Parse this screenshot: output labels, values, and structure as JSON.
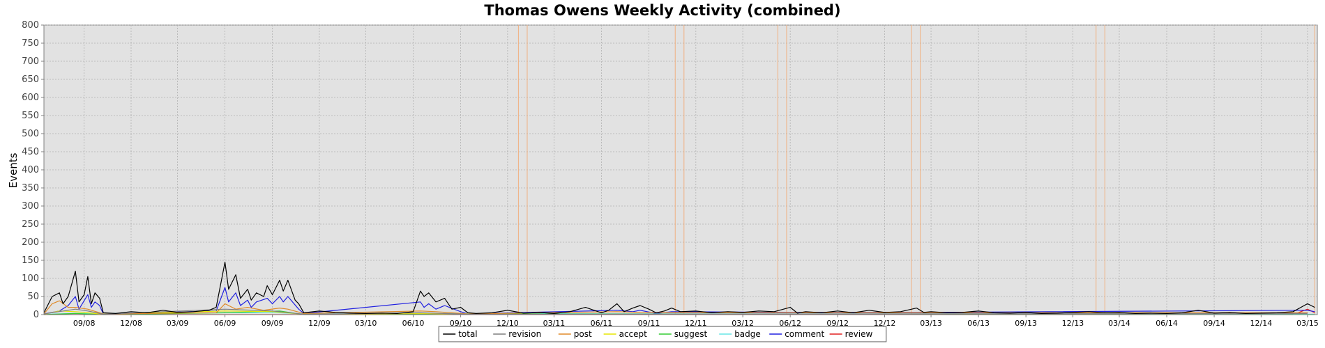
{
  "chart_data": {
    "type": "line",
    "title": "Thomas Owens Weekly Activity (combined)",
    "xlabel": "",
    "ylabel": "Events",
    "ylim": [
      0,
      800
    ],
    "yticks": [
      0,
      50,
      100,
      150,
      200,
      250,
      300,
      350,
      400,
      450,
      500,
      550,
      600,
      650,
      700,
      750,
      800
    ],
    "x_start": "2008-06-15",
    "x_end": "2015-03-20",
    "grid": true,
    "legend": "bottom-center",
    "x_tick_labels": [
      "09/08",
      "12/08",
      "03/09",
      "06/09",
      "09/09",
      "12/09",
      "03/10",
      "06/10",
      "09/10",
      "12/10",
      "03/11",
      "06/11",
      "09/11",
      "12/11",
      "03/12",
      "06/12",
      "09/12",
      "12/12",
      "03/13",
      "06/13",
      "09/13",
      "12/13",
      "03/14",
      "06/14",
      "09/14",
      "12/14",
      "03/15"
    ],
    "x_tick_dates": [
      "2008-09-01",
      "2008-12-01",
      "2009-03-01",
      "2009-06-01",
      "2009-09-01",
      "2009-12-01",
      "2010-03-01",
      "2010-06-01",
      "2010-09-01",
      "2010-12-01",
      "2011-03-01",
      "2011-06-01",
      "2011-09-01",
      "2011-12-01",
      "2012-03-01",
      "2012-06-01",
      "2012-09-01",
      "2012-12-01",
      "2013-03-01",
      "2013-06-01",
      "2013-09-01",
      "2013-12-01",
      "2014-03-01",
      "2014-06-01",
      "2014-09-01",
      "2014-12-01",
      "2015-03-01"
    ],
    "markers": [
      {
        "date": "2008-06-15",
        "color": "#3cb43c"
      },
      {
        "date": "2010-12-22",
        "color": "#f0b080"
      },
      {
        "date": "2011-01-08",
        "color": "#f0b080"
      },
      {
        "date": "2011-10-22",
        "color": "#f0b080"
      },
      {
        "date": "2011-11-08",
        "color": "#f0b080"
      },
      {
        "date": "2012-05-08",
        "color": "#f0b080"
      },
      {
        "date": "2012-05-25",
        "color": "#f0b080"
      },
      {
        "date": "2013-01-22",
        "color": "#f0b080"
      },
      {
        "date": "2013-02-08",
        "color": "#f0b080"
      },
      {
        "date": "2014-01-15",
        "color": "#f0b080"
      },
      {
        "date": "2014-02-01",
        "color": "#f0b080"
      },
      {
        "date": "2015-03-15",
        "color": "#f0b080"
      }
    ],
    "series": [
      {
        "name": "total",
        "color": "#000000",
        "points": [
          [
            "2008-06-15",
            5
          ],
          [
            "2008-07-01",
            50
          ],
          [
            "2008-07-15",
            60
          ],
          [
            "2008-07-22",
            30
          ],
          [
            "2008-08-01",
            50
          ],
          [
            "2008-08-15",
            120
          ],
          [
            "2008-08-22",
            35
          ],
          [
            "2008-09-01",
            55
          ],
          [
            "2008-09-08",
            105
          ],
          [
            "2008-09-15",
            30
          ],
          [
            "2008-09-22",
            60
          ],
          [
            "2008-10-01",
            45
          ],
          [
            "2008-10-08",
            5
          ],
          [
            "2008-11-01",
            3
          ],
          [
            "2008-12-01",
            8
          ],
          [
            "2009-01-01",
            5
          ],
          [
            "2009-02-01",
            12
          ],
          [
            "2009-03-01",
            6
          ],
          [
            "2009-04-01",
            8
          ],
          [
            "2009-05-01",
            12
          ],
          [
            "2009-05-15",
            20
          ],
          [
            "2009-06-01",
            145
          ],
          [
            "2009-06-08",
            70
          ],
          [
            "2009-06-22",
            110
          ],
          [
            "2009-07-01",
            45
          ],
          [
            "2009-07-15",
            70
          ],
          [
            "2009-07-22",
            40
          ],
          [
            "2009-08-01",
            60
          ],
          [
            "2009-08-15",
            50
          ],
          [
            "2009-08-22",
            80
          ],
          [
            "2009-09-01",
            55
          ],
          [
            "2009-09-15",
            95
          ],
          [
            "2009-09-22",
            65
          ],
          [
            "2009-10-01",
            95
          ],
          [
            "2009-10-15",
            40
          ],
          [
            "2009-10-22",
            30
          ],
          [
            "2009-11-01",
            5
          ],
          [
            "2009-12-01",
            10
          ],
          [
            "2010-01-01",
            6
          ],
          [
            "2010-02-01",
            4
          ],
          [
            "2010-03-01",
            3
          ],
          [
            "2010-04-01",
            4
          ],
          [
            "2010-05-01",
            3
          ],
          [
            "2010-06-01",
            8
          ],
          [
            "2010-06-15",
            65
          ],
          [
            "2010-06-22",
            50
          ],
          [
            "2010-07-01",
            60
          ],
          [
            "2010-07-15",
            35
          ],
          [
            "2010-08-01",
            45
          ],
          [
            "2010-08-15",
            15
          ],
          [
            "2010-09-01",
            20
          ],
          [
            "2010-09-15",
            5
          ],
          [
            "2010-10-01",
            3
          ],
          [
            "2010-11-01",
            5
          ],
          [
            "2010-12-01",
            12
          ],
          [
            "2011-01-01",
            4
          ],
          [
            "2011-02-01",
            6
          ],
          [
            "2011-03-01",
            3
          ],
          [
            "2011-04-01",
            8
          ],
          [
            "2011-05-01",
            20
          ],
          [
            "2011-06-01",
            5
          ],
          [
            "2011-06-15",
            12
          ],
          [
            "2011-07-01",
            30
          ],
          [
            "2011-07-15",
            8
          ],
          [
            "2011-08-01",
            18
          ],
          [
            "2011-08-15",
            25
          ],
          [
            "2011-09-01",
            15
          ],
          [
            "2011-09-15",
            5
          ],
          [
            "2011-10-01",
            10
          ],
          [
            "2011-10-15",
            18
          ],
          [
            "2011-11-01",
            8
          ],
          [
            "2011-12-01",
            10
          ],
          [
            "2012-01-01",
            5
          ],
          [
            "2012-02-01",
            8
          ],
          [
            "2012-03-01",
            6
          ],
          [
            "2012-04-01",
            10
          ],
          [
            "2012-05-01",
            8
          ],
          [
            "2012-06-01",
            20
          ],
          [
            "2012-06-15",
            4
          ],
          [
            "2012-07-01",
            8
          ],
          [
            "2012-08-01",
            5
          ],
          [
            "2012-09-01",
            10
          ],
          [
            "2012-10-01",
            5
          ],
          [
            "2012-11-01",
            12
          ],
          [
            "2012-12-01",
            6
          ],
          [
            "2013-01-01",
            8
          ],
          [
            "2013-02-01",
            18
          ],
          [
            "2013-02-15",
            6
          ],
          [
            "2013-03-01",
            8
          ],
          [
            "2013-04-01",
            5
          ],
          [
            "2013-05-01",
            6
          ],
          [
            "2013-06-01",
            10
          ],
          [
            "2013-07-01",
            5
          ],
          [
            "2013-08-01",
            4
          ],
          [
            "2013-09-01",
            6
          ],
          [
            "2013-10-01",
            3
          ],
          [
            "2013-11-01",
            4
          ],
          [
            "2013-12-01",
            6
          ],
          [
            "2014-01-01",
            8
          ],
          [
            "2014-02-01",
            5
          ],
          [
            "2014-03-01",
            6
          ],
          [
            "2014-04-01",
            3
          ],
          [
            "2014-05-01",
            4
          ],
          [
            "2014-06-01",
            3
          ],
          [
            "2014-07-01",
            5
          ],
          [
            "2014-08-01",
            12
          ],
          [
            "2014-09-01",
            4
          ],
          [
            "2014-10-01",
            6
          ],
          [
            "2014-11-01",
            3
          ],
          [
            "2014-12-01",
            4
          ],
          [
            "2015-01-01",
            5
          ],
          [
            "2015-02-01",
            8
          ],
          [
            "2015-03-01",
            30
          ],
          [
            "2015-03-15",
            20
          ]
        ]
      },
      {
        "name": "revision",
        "color": "#7f7f7f",
        "points": [
          [
            "2008-06-15",
            2
          ],
          [
            "2008-08-15",
            15
          ],
          [
            "2008-09-08",
            10
          ],
          [
            "2008-10-08",
            1
          ],
          [
            "2009-06-01",
            15
          ],
          [
            "2009-09-01",
            10
          ],
          [
            "2009-11-01",
            1
          ],
          [
            "2010-06-15",
            5
          ],
          [
            "2010-09-15",
            1
          ],
          [
            "2015-03-01",
            3
          ]
        ]
      },
      {
        "name": "post",
        "color": "#e08a28",
        "points": [
          [
            "2008-06-15",
            2
          ],
          [
            "2008-07-01",
            30
          ],
          [
            "2008-07-15",
            38
          ],
          [
            "2008-08-01",
            20
          ],
          [
            "2008-08-15",
            20
          ],
          [
            "2008-09-08",
            15
          ],
          [
            "2008-10-08",
            2
          ],
          [
            "2009-05-15",
            5
          ],
          [
            "2009-06-01",
            30
          ],
          [
            "2009-06-22",
            15
          ],
          [
            "2009-07-15",
            20
          ],
          [
            "2009-08-15",
            12
          ],
          [
            "2009-09-15",
            18
          ],
          [
            "2009-10-01",
            15
          ],
          [
            "2009-11-01",
            3
          ],
          [
            "2010-06-15",
            10
          ],
          [
            "2010-07-15",
            8
          ],
          [
            "2010-09-15",
            2
          ],
          [
            "2011-07-01",
            8
          ],
          [
            "2011-08-15",
            6
          ],
          [
            "2012-06-01",
            5
          ],
          [
            "2015-03-01",
            5
          ]
        ]
      },
      {
        "name": "accept",
        "color": "#e6e600",
        "points": [
          [
            "2008-06-15",
            1
          ],
          [
            "2008-07-15",
            10
          ],
          [
            "2008-08-15",
            8
          ],
          [
            "2008-10-08",
            1
          ],
          [
            "2009-06-01",
            10
          ],
          [
            "2009-09-01",
            8
          ],
          [
            "2009-11-01",
            1
          ],
          [
            "2010-06-15",
            3
          ],
          [
            "2010-09-15",
            1
          ]
        ]
      },
      {
        "name": "suggest",
        "color": "#33cc33",
        "points": [
          [
            "2008-06-15",
            0
          ],
          [
            "2008-08-15",
            3
          ],
          [
            "2008-10-08",
            0
          ],
          [
            "2009-06-01",
            5
          ],
          [
            "2009-09-15",
            10
          ],
          [
            "2009-11-01",
            0
          ],
          [
            "2010-06-15",
            2
          ],
          [
            "2015-03-15",
            0
          ]
        ]
      },
      {
        "name": "badge",
        "color": "#66e6e6",
        "points": [
          [
            "2008-06-15",
            1
          ],
          [
            "2008-08-15",
            3
          ],
          [
            "2009-06-01",
            5
          ],
          [
            "2009-09-01",
            6
          ],
          [
            "2009-11-01",
            2
          ],
          [
            "2010-06-15",
            3
          ],
          [
            "2012-01-01",
            2
          ],
          [
            "2014-01-01",
            2
          ],
          [
            "2015-03-15",
            1
          ]
        ]
      },
      {
        "name": "comment",
        "color": "#2020e0",
        "points": [
          [
            "2008-06-15",
            2
          ],
          [
            "2008-07-15",
            10
          ],
          [
            "2008-08-01",
            25
          ],
          [
            "2008-08-15",
            50
          ],
          [
            "2008-08-22",
            15
          ],
          [
            "2008-09-08",
            55
          ],
          [
            "2008-09-15",
            20
          ],
          [
            "2008-09-22",
            35
          ],
          [
            "2008-10-01",
            25
          ],
          [
            "2008-10-08",
            2
          ],
          [
            "2009-05-15",
            10
          ],
          [
            "2009-06-01",
            75
          ],
          [
            "2009-06-08",
            35
          ],
          [
            "2009-06-22",
            60
          ],
          [
            "2009-07-01",
            25
          ],
          [
            "2009-07-15",
            40
          ],
          [
            "2009-07-22",
            20
          ],
          [
            "2009-08-01",
            35
          ],
          [
            "2009-08-22",
            45
          ],
          [
            "2009-09-01",
            30
          ],
          [
            "2009-09-15",
            50
          ],
          [
            "2009-09-22",
            35
          ],
          [
            "2009-10-01",
            50
          ],
          [
            "2009-10-22",
            15
          ],
          [
            "2009-11-01",
            3
          ],
          [
            "2010-06-15",
            35
          ],
          [
            "2010-06-22",
            20
          ],
          [
            "2010-07-01",
            30
          ],
          [
            "2010-07-15",
            15
          ],
          [
            "2010-08-01",
            25
          ],
          [
            "2010-09-01",
            8
          ],
          [
            "2010-09-15",
            2
          ],
          [
            "2011-07-01",
            12
          ],
          [
            "2011-08-01",
            8
          ],
          [
            "2011-08-15",
            12
          ],
          [
            "2011-09-15",
            3
          ],
          [
            "2011-10-15",
            8
          ],
          [
            "2012-06-01",
            6
          ],
          [
            "2013-02-01",
            6
          ],
          [
            "2015-03-01",
            12
          ],
          [
            "2015-03-15",
            8
          ]
        ]
      },
      {
        "name": "review",
        "color": "#e02020",
        "points": [
          [
            "2008-06-15",
            0
          ],
          [
            "2015-02-01",
            0
          ],
          [
            "2015-03-01",
            15
          ],
          [
            "2015-03-15",
            5
          ]
        ]
      }
    ]
  }
}
